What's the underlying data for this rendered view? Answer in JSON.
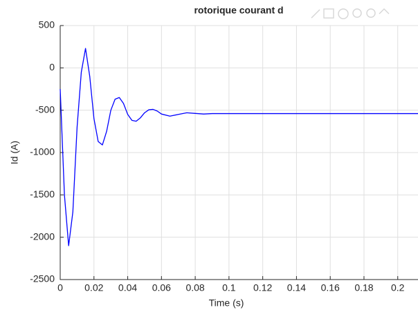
{
  "chart_data": {
    "type": "line",
    "title": "rotorique courant d",
    "xlabel": "Time (s)",
    "ylabel": "Id (A)",
    "x": [
      0,
      0.0025,
      0.005,
      0.0075,
      0.01,
      0.0125,
      0.015,
      0.0175,
      0.02,
      0.0225,
      0.025,
      0.0275,
      0.03,
      0.0325,
      0.035,
      0.0375,
      0.04,
      0.0425,
      0.045,
      0.0475,
      0.05,
      0.0525,
      0.055,
      0.0575,
      0.06,
      0.065,
      0.07,
      0.075,
      0.08,
      0.085,
      0.09,
      0.1,
      0.212
    ],
    "series": [
      {
        "name": "Id",
        "color": "#0000ff",
        "values": [
          -250,
          -1500,
          -2100,
          -1700,
          -700,
          -50,
          230,
          -100,
          -600,
          -870,
          -910,
          -750,
          -500,
          -370,
          -350,
          -420,
          -550,
          -620,
          -630,
          -590,
          -530,
          -495,
          -490,
          -510,
          -545,
          -570,
          -550,
          -530,
          -538,
          -545,
          -540,
          -540,
          -540
        ]
      }
    ],
    "xlim": [
      0,
      0.212
    ],
    "xticks": [
      0,
      0.02,
      0.04,
      0.06,
      0.08,
      0.1,
      0.12,
      0.14,
      0.16,
      0.18,
      0.2
    ],
    "ylim": [
      -2500,
      500
    ],
    "yticks": [
      -2500,
      -2000,
      -1500,
      -1000,
      -500,
      0,
      500
    ],
    "grid": true
  }
}
